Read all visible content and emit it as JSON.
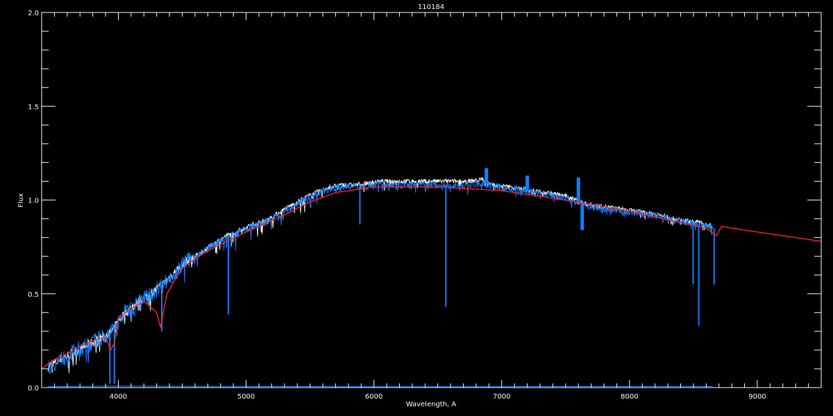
{
  "chart_data": {
    "type": "line",
    "title": "110184",
    "xlabel": "Wavelength, A",
    "ylabel": "Flux",
    "xlim": [
      3400,
      9500
    ],
    "ylim": [
      0.0,
      2.0
    ],
    "xticks": [
      4000,
      5000,
      6000,
      7000,
      8000,
      9000
    ],
    "xtick_labels": [
      "4000",
      "5000",
      "6000",
      "7000",
      "8000",
      "9000"
    ],
    "yticks": [
      0.0,
      0.5,
      1.0,
      1.5,
      2.0
    ],
    "ytick_labels": [
      "0.0",
      "0.5",
      "1.0",
      "1.5",
      "2.0"
    ],
    "grid": false,
    "colors": {
      "background": "#000000",
      "axes": "#ffffff",
      "observed": "#ffffff",
      "spectrum": "#1080ff",
      "model": "#ff2020",
      "error": "#1080ff"
    },
    "series": [
      {
        "color": "#ffffff",
        "x": [
          3450,
          3550,
          3650,
          3750,
          3850,
          3950,
          4050,
          4150,
          4250,
          4350,
          4450,
          4550,
          4650,
          4750,
          4850,
          4950,
          5050,
          5150,
          5250,
          5350,
          5450,
          5550,
          5650,
          5750,
          5850,
          5950,
          6050,
          6150,
          6250,
          6350,
          6450,
          6550,
          6650,
          6750,
          6850,
          6950,
          7050,
          7150,
          7250,
          7350,
          7450,
          7550,
          7650,
          7750,
          7850,
          7950,
          8050,
          8150,
          8250,
          8350,
          8450,
          8550,
          8650
        ],
        "y": [
          0.11,
          0.15,
          0.19,
          0.22,
          0.26,
          0.3,
          0.4,
          0.45,
          0.5,
          0.55,
          0.62,
          0.68,
          0.72,
          0.77,
          0.81,
          0.84,
          0.87,
          0.89,
          0.93,
          0.97,
          1.01,
          1.04,
          1.07,
          1.08,
          1.08,
          1.09,
          1.1,
          1.1,
          1.1,
          1.1,
          1.1,
          1.1,
          1.1,
          1.1,
          1.11,
          1.08,
          1.07,
          1.06,
          1.05,
          1.04,
          1.03,
          1.01,
          0.98,
          0.97,
          0.96,
          0.95,
          0.94,
          0.93,
          0.92,
          0.9,
          0.89,
          0.88,
          0.86
        ]
      },
      {
        "color": "#1080ff",
        "x": [
          3450,
          3550,
          3650,
          3750,
          3850,
          3950,
          4050,
          4150,
          4250,
          4350,
          4450,
          4550,
          4650,
          4750,
          4850,
          4950,
          5050,
          5150,
          5250,
          5350,
          5450,
          5550,
          5650,
          5750,
          5850,
          5950,
          6050,
          6150,
          6250,
          6350,
          6450,
          6550,
          6650,
          6750,
          6850,
          6950,
          7050,
          7150,
          7250,
          7350,
          7450,
          7550,
          7650,
          7750,
          7850,
          7950,
          8050,
          8150,
          8250,
          8350,
          8450,
          8550,
          8650
        ],
        "y": [
          0.11,
          0.15,
          0.19,
          0.22,
          0.26,
          0.3,
          0.4,
          0.45,
          0.5,
          0.55,
          0.62,
          0.68,
          0.72,
          0.76,
          0.8,
          0.83,
          0.86,
          0.88,
          0.92,
          0.96,
          1.0,
          1.03,
          1.06,
          1.07,
          1.07,
          1.08,
          1.09,
          1.08,
          1.08,
          1.08,
          1.08,
          1.08,
          1.08,
          1.08,
          1.09,
          1.07,
          1.06,
          1.05,
          1.04,
          1.03,
          1.02,
          1.0,
          0.97,
          0.96,
          0.95,
          0.94,
          0.93,
          0.92,
          0.91,
          0.89,
          0.88,
          0.87,
          0.85
        ],
        "lines": [
          [
            3934,
            0.02
          ],
          [
            3969,
            0.02
          ],
          [
            4102,
            0.35
          ],
          [
            4340,
            0.3
          ],
          [
            4861,
            0.39
          ],
          [
            5890,
            0.87
          ],
          [
            6563,
            0.43
          ],
          [
            8498,
            0.55
          ],
          [
            8542,
            0.33
          ],
          [
            8662,
            0.55
          ]
        ],
        "features": [
          [
            6880,
            1.17
          ],
          [
            7600,
            1.12
          ],
          [
            7630,
            0.84
          ],
          [
            7200,
            1.13
          ]
        ]
      },
      {
        "color": "#ff2020",
        "x": [
          3400,
          3500,
          3600,
          3700,
          3800,
          3900,
          3940,
          3970,
          4000,
          4100,
          4200,
          4300,
          4330,
          4380,
          4500,
          4700,
          5000,
          5300,
          5500,
          5700,
          6000,
          6500,
          7000,
          7500,
          8000,
          8400,
          8600,
          8680,
          8720,
          8800,
          9000,
          9200,
          9500
        ],
        "y": [
          0.1,
          0.15,
          0.18,
          0.22,
          0.25,
          0.27,
          0.2,
          0.24,
          0.37,
          0.42,
          0.46,
          0.4,
          0.32,
          0.5,
          0.64,
          0.73,
          0.83,
          0.92,
          0.99,
          1.04,
          1.07,
          1.07,
          1.05,
          1.0,
          0.94,
          0.88,
          0.85,
          0.81,
          0.86,
          0.85,
          0.83,
          0.81,
          0.78
        ]
      },
      {
        "color": "#1080ff",
        "x": [
          3450,
          4000,
          5000,
          6000,
          7000,
          8000,
          8650
        ],
        "y": [
          0.005,
          0.008,
          0.006,
          0.005,
          0.005,
          0.006,
          0.006
        ]
      }
    ]
  }
}
